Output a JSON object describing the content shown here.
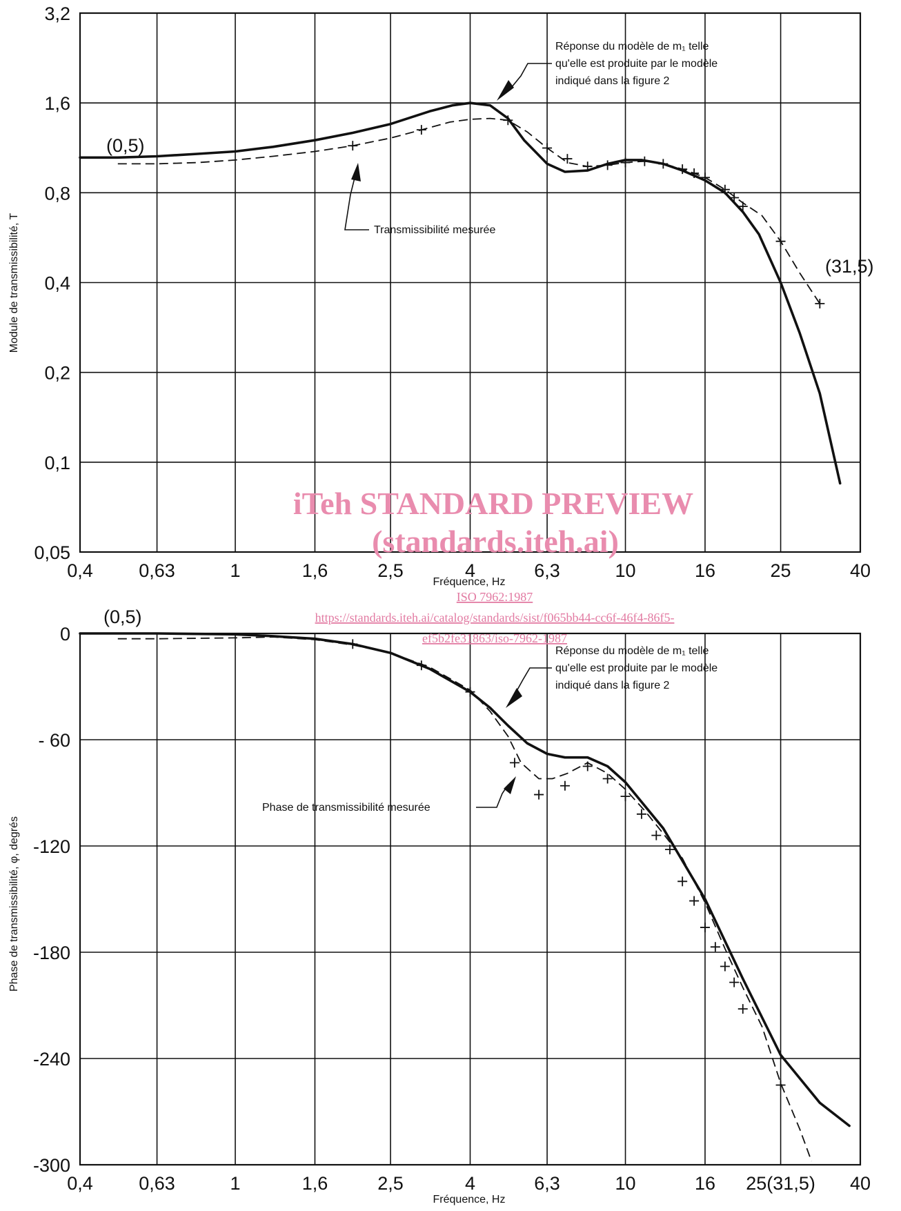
{
  "watermark": {
    "line1": "iTeh STANDARD PREVIEW",
    "line2": "(standards.iteh.ai)",
    "link1": "ISO 7962:1987",
    "link2": "https://standards.iteh.ai/catalog/standards/sist/f065bb44-cc6f-46f4-86f5-",
    "link3": "ef5b2fe31863/iso-7962-1987"
  },
  "chart_data": [
    {
      "type": "line",
      "xscale": "log",
      "yscale": "log",
      "xlabel": "Fréquence, Hz",
      "ylabel": "Module de transmissibilité, T",
      "xlim": [
        0.4,
        40
      ],
      "ylim": [
        0.05,
        3.2
      ],
      "grid": true,
      "x_ticks": [
        0.4,
        0.63,
        1,
        1.6,
        2.5,
        4,
        6.3,
        10,
        16,
        25,
        40
      ],
      "x_tick_labels": [
        "0,4",
        "0,63",
        "1",
        "1,6",
        "2,5",
        "4",
        "6,3",
        "10",
        "16",
        "25",
        "40"
      ],
      "y_ticks": [
        0.05,
        0.1,
        0.2,
        0.4,
        0.8,
        1.6,
        3.2
      ],
      "y_tick_labels": [
        "0,05",
        "0,1",
        "0,2",
        "0,4",
        "0,8",
        "1,6",
        "3,2"
      ],
      "annotations": [
        {
          "text": "(0,5)",
          "x": 0.5,
          "y": 1.05
        },
        {
          "text": "(31,5)",
          "x": 31.5,
          "y": 0.45
        },
        {
          "lines": [
            "Réponse du modèle de m₁ telle",
            "qu'elle est produite par le modèle",
            "indiqué dans la figure 2"
          ],
          "points_to_series": 0
        },
        {
          "lines": [
            "Transmissibilité mesurée"
          ],
          "points_to_series": 1
        }
      ],
      "series": [
        {
          "style": "solid",
          "x": [
            0.4,
            0.5,
            0.63,
            0.8,
            1.0,
            1.25,
            1.6,
            2.0,
            2.5,
            3.15,
            3.6,
            4.0,
            4.5,
            5.0,
            5.5,
            6.3,
            7.0,
            8.0,
            9.0,
            10,
            11,
            12.5,
            14,
            16,
            18,
            20,
            22,
            25,
            28,
            31.5,
            35.5
          ],
          "y": [
            1.05,
            1.05,
            1.06,
            1.08,
            1.1,
            1.14,
            1.2,
            1.27,
            1.36,
            1.5,
            1.57,
            1.6,
            1.57,
            1.42,
            1.2,
            1.0,
            0.94,
            0.95,
            1.0,
            1.03,
            1.03,
            1.0,
            0.95,
            0.88,
            0.8,
            0.69,
            0.58,
            0.4,
            0.27,
            0.17,
            0.085
          ]
        },
        {
          "style": "dashed",
          "x": [
            0.5,
            0.63,
            0.8,
            1.0,
            1.25,
            1.6,
            2.0,
            2.5,
            3.0,
            3.55,
            4.0,
            4.5,
            5.0,
            5.6,
            6.3,
            7.1,
            8.0,
            9.0,
            10,
            11.2,
            12.5,
            14,
            15,
            16,
            18,
            20,
            22.4,
            25,
            28,
            31.5
          ],
          "y": [
            1.0,
            1.0,
            1.01,
            1.03,
            1.06,
            1.1,
            1.15,
            1.22,
            1.3,
            1.38,
            1.41,
            1.42,
            1.4,
            1.28,
            1.13,
            1.01,
            0.98,
            0.99,
            1.01,
            1.02,
            1.0,
            0.96,
            0.93,
            0.9,
            0.82,
            0.74,
            0.67,
            0.55,
            0.43,
            0.34
          ]
        }
      ],
      "markers": {
        "x": [
          2.0,
          3.0,
          5.0,
          6.3,
          7.1,
          8.0,
          9.0,
          10,
          11.2,
          12.5,
          14,
          15,
          16,
          18,
          19,
          20,
          25,
          31.5
        ],
        "y": [
          1.15,
          1.3,
          1.4,
          1.13,
          1.04,
          0.98,
          0.99,
          1.01,
          1.02,
          1.0,
          0.96,
          0.93,
          0.9,
          0.82,
          0.77,
          0.72,
          0.55,
          0.34
        ]
      }
    },
    {
      "type": "line",
      "xscale": "log",
      "xlabel": "Fréquence, Hz",
      "ylabel": "Phase de transmissibilité, φ, degrés",
      "xlim": [
        0.4,
        40
      ],
      "ylim": [
        -300,
        0
      ],
      "grid": true,
      "x_ticks": [
        0.4,
        0.63,
        1,
        1.6,
        2.5,
        4,
        6.3,
        10,
        16,
        25,
        40
      ],
      "x_tick_labels": [
        "0,4",
        "0,63",
        "1",
        "1,6",
        "2,5",
        "4",
        "6,3",
        "10",
        "16",
        "25(31,5)",
        "40"
      ],
      "y_ticks": [
        -300,
        -240,
        -180,
        -120,
        -60,
        0
      ],
      "y_tick_labels": [
        "-300",
        "-240",
        "-180",
        "-120",
        "- 60",
        "0"
      ],
      "annotations": [
        {
          "text": "(0,5)",
          "x": 0.5,
          "y": 0
        },
        {
          "lines": [
            "Réponse du modèle de m₁ telle",
            "qu'elle est produite par le modèle",
            "indiqué dans la figure 2"
          ],
          "points_to_series": 0
        },
        {
          "lines": [
            "Phase de transmissibilité mesurée"
          ],
          "points_to_series": 1
        }
      ],
      "series": [
        {
          "style": "solid",
          "x": [
            0.4,
            0.63,
            1.0,
            1.25,
            1.6,
            2.0,
            2.5,
            3.15,
            4.0,
            4.5,
            5.0,
            5.6,
            6.3,
            7.0,
            8.0,
            9.0,
            10,
            12.5,
            16,
            20,
            25,
            31.5,
            37.5
          ],
          "y": [
            0,
            0,
            -0.5,
            -1.5,
            -3,
            -6,
            -11,
            -20,
            -33,
            -42,
            -52,
            -62,
            -68,
            -70,
            -70,
            -75,
            -84,
            -110,
            -150,
            -195,
            -238,
            -265,
            -278
          ]
        },
        {
          "style": "dashed",
          "x": [
            0.5,
            0.63,
            1.0,
            1.25,
            1.6,
            2.0,
            2.5,
            3.15,
            4.0,
            4.5,
            5.0,
            5.4,
            6.0,
            6.5,
            7.1,
            8.0,
            9.0,
            10,
            11.2,
            12.5,
            14,
            16,
            18,
            20,
            22.4,
            25,
            28,
            30
          ],
          "y": [
            -3,
            -3,
            -2.5,
            -2,
            -3.5,
            -6.5,
            -11,
            -19,
            -32,
            -44,
            -58,
            -73,
            -82,
            -82,
            -79,
            -73,
            -79,
            -88,
            -100,
            -113,
            -127,
            -152,
            -178,
            -200,
            -222,
            -254,
            -280,
            -298
          ]
        }
      ],
      "markers": {
        "x": [
          2.0,
          3.0,
          4.0,
          5.2,
          6.0,
          7.0,
          8.0,
          9.0,
          10,
          11,
          12,
          13,
          14,
          15,
          16,
          17,
          18,
          19,
          20,
          25
        ],
        "y": [
          -6,
          -18,
          -33,
          -73,
          -91,
          -86,
          -75,
          -82,
          -92,
          -102,
          -114,
          -122,
          -140,
          -151,
          -166,
          -177,
          -188,
          -197,
          -212,
          -255
        ]
      }
    }
  ]
}
